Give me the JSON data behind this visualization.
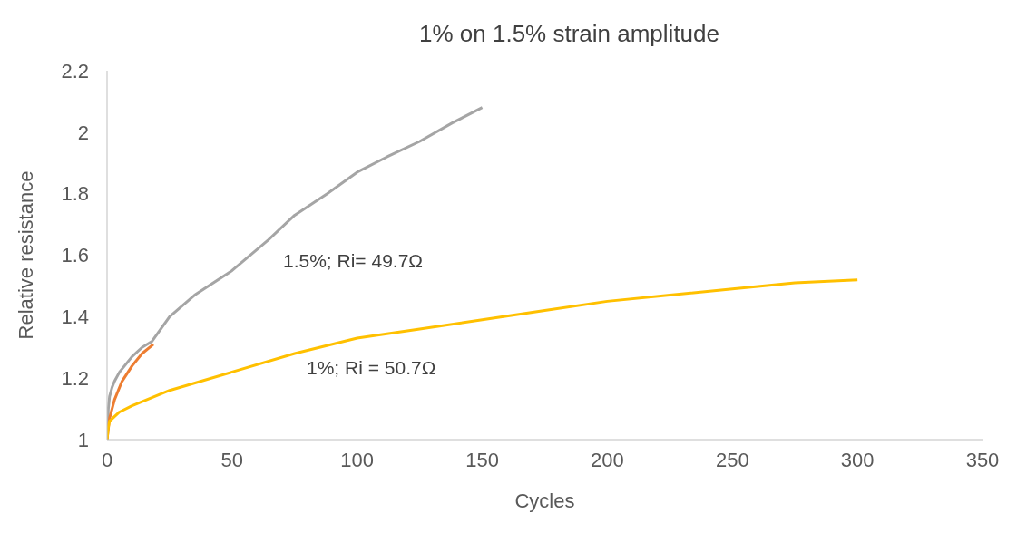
{
  "chart_data": {
    "type": "line",
    "title": "1% on 1.5% strain amplitude",
    "xlabel": "Cycles",
    "ylabel": "Relative resistance",
    "series": [
      {
        "color": "#a5a5a5",
        "x": [
          0,
          0.5,
          1,
          2,
          3,
          5,
          7,
          10,
          14,
          18,
          25,
          35,
          50,
          64.5,
          75,
          88,
          100,
          112,
          125,
          138,
          150
        ],
        "values": [
          1.0,
          1.1,
          1.14,
          1.17,
          1.19,
          1.22,
          1.24,
          1.27,
          1.3,
          1.32,
          1.4,
          1.47,
          1.55,
          1.65,
          1.73,
          1.8,
          1.87,
          1.92,
          1.97,
          2.03,
          2.08
        ]
      },
      {
        "color": "#ed7d31",
        "x": [
          0,
          1,
          3,
          6,
          10,
          14,
          18.5
        ],
        "values": [
          1.0,
          1.07,
          1.13,
          1.19,
          1.24,
          1.28,
          1.31
        ]
      },
      {
        "color": "#ffc000",
        "x": [
          0,
          0.5,
          1,
          5,
          10,
          25,
          50,
          75,
          100,
          125,
          150,
          175,
          200,
          225,
          250,
          275,
          300
        ],
        "values": [
          1.0,
          1.04,
          1.06,
          1.09,
          1.11,
          1.16,
          1.22,
          1.28,
          1.33,
          1.36,
          1.39,
          1.42,
          1.45,
          1.47,
          1.49,
          1.51,
          1.52
        ]
      }
    ],
    "xlim": [
      0,
      350
    ],
    "xticks": [
      0,
      50,
      100,
      150,
      200,
      250,
      300,
      350
    ],
    "ylim": [
      1,
      2.2
    ],
    "yticks": [
      1,
      1.2,
      1.4,
      1.6,
      1.8,
      2,
      2.2
    ],
    "grid": false,
    "legend": false,
    "marker": "none",
    "line_style": "solid",
    "annotations": [
      "1.5%; Ri= 49.7Ω",
      "1%; Ri = 50.7Ω"
    ]
  }
}
